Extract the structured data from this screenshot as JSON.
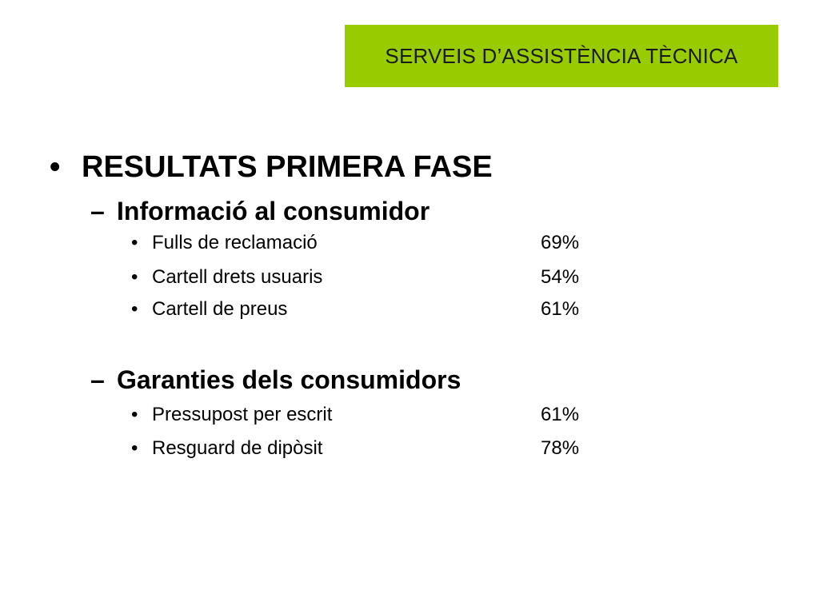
{
  "header": {
    "title": "SERVEIS D’ASSISTÈNCIA TÈCNICA",
    "background_color": "#99cc00"
  },
  "content": {
    "bullet_glyph": "•",
    "dash_glyph": "–",
    "heading": "RESULTATS PRIMERA FASE",
    "sections": [
      {
        "title": "Informació al consumidor",
        "items": [
          {
            "label": "Fulls de reclamació",
            "value": "69%"
          },
          {
            "label": "Cartell drets usuaris",
            "value": "54%"
          },
          {
            "label": "Cartell de preus",
            "value": "61%"
          }
        ]
      },
      {
        "title": "Garanties dels consumidors",
        "items": [
          {
            "label": "Pressupost per escrit",
            "value": "61%"
          },
          {
            "label": "Resguard de dipòsit",
            "value": "78%"
          }
        ]
      }
    ]
  }
}
